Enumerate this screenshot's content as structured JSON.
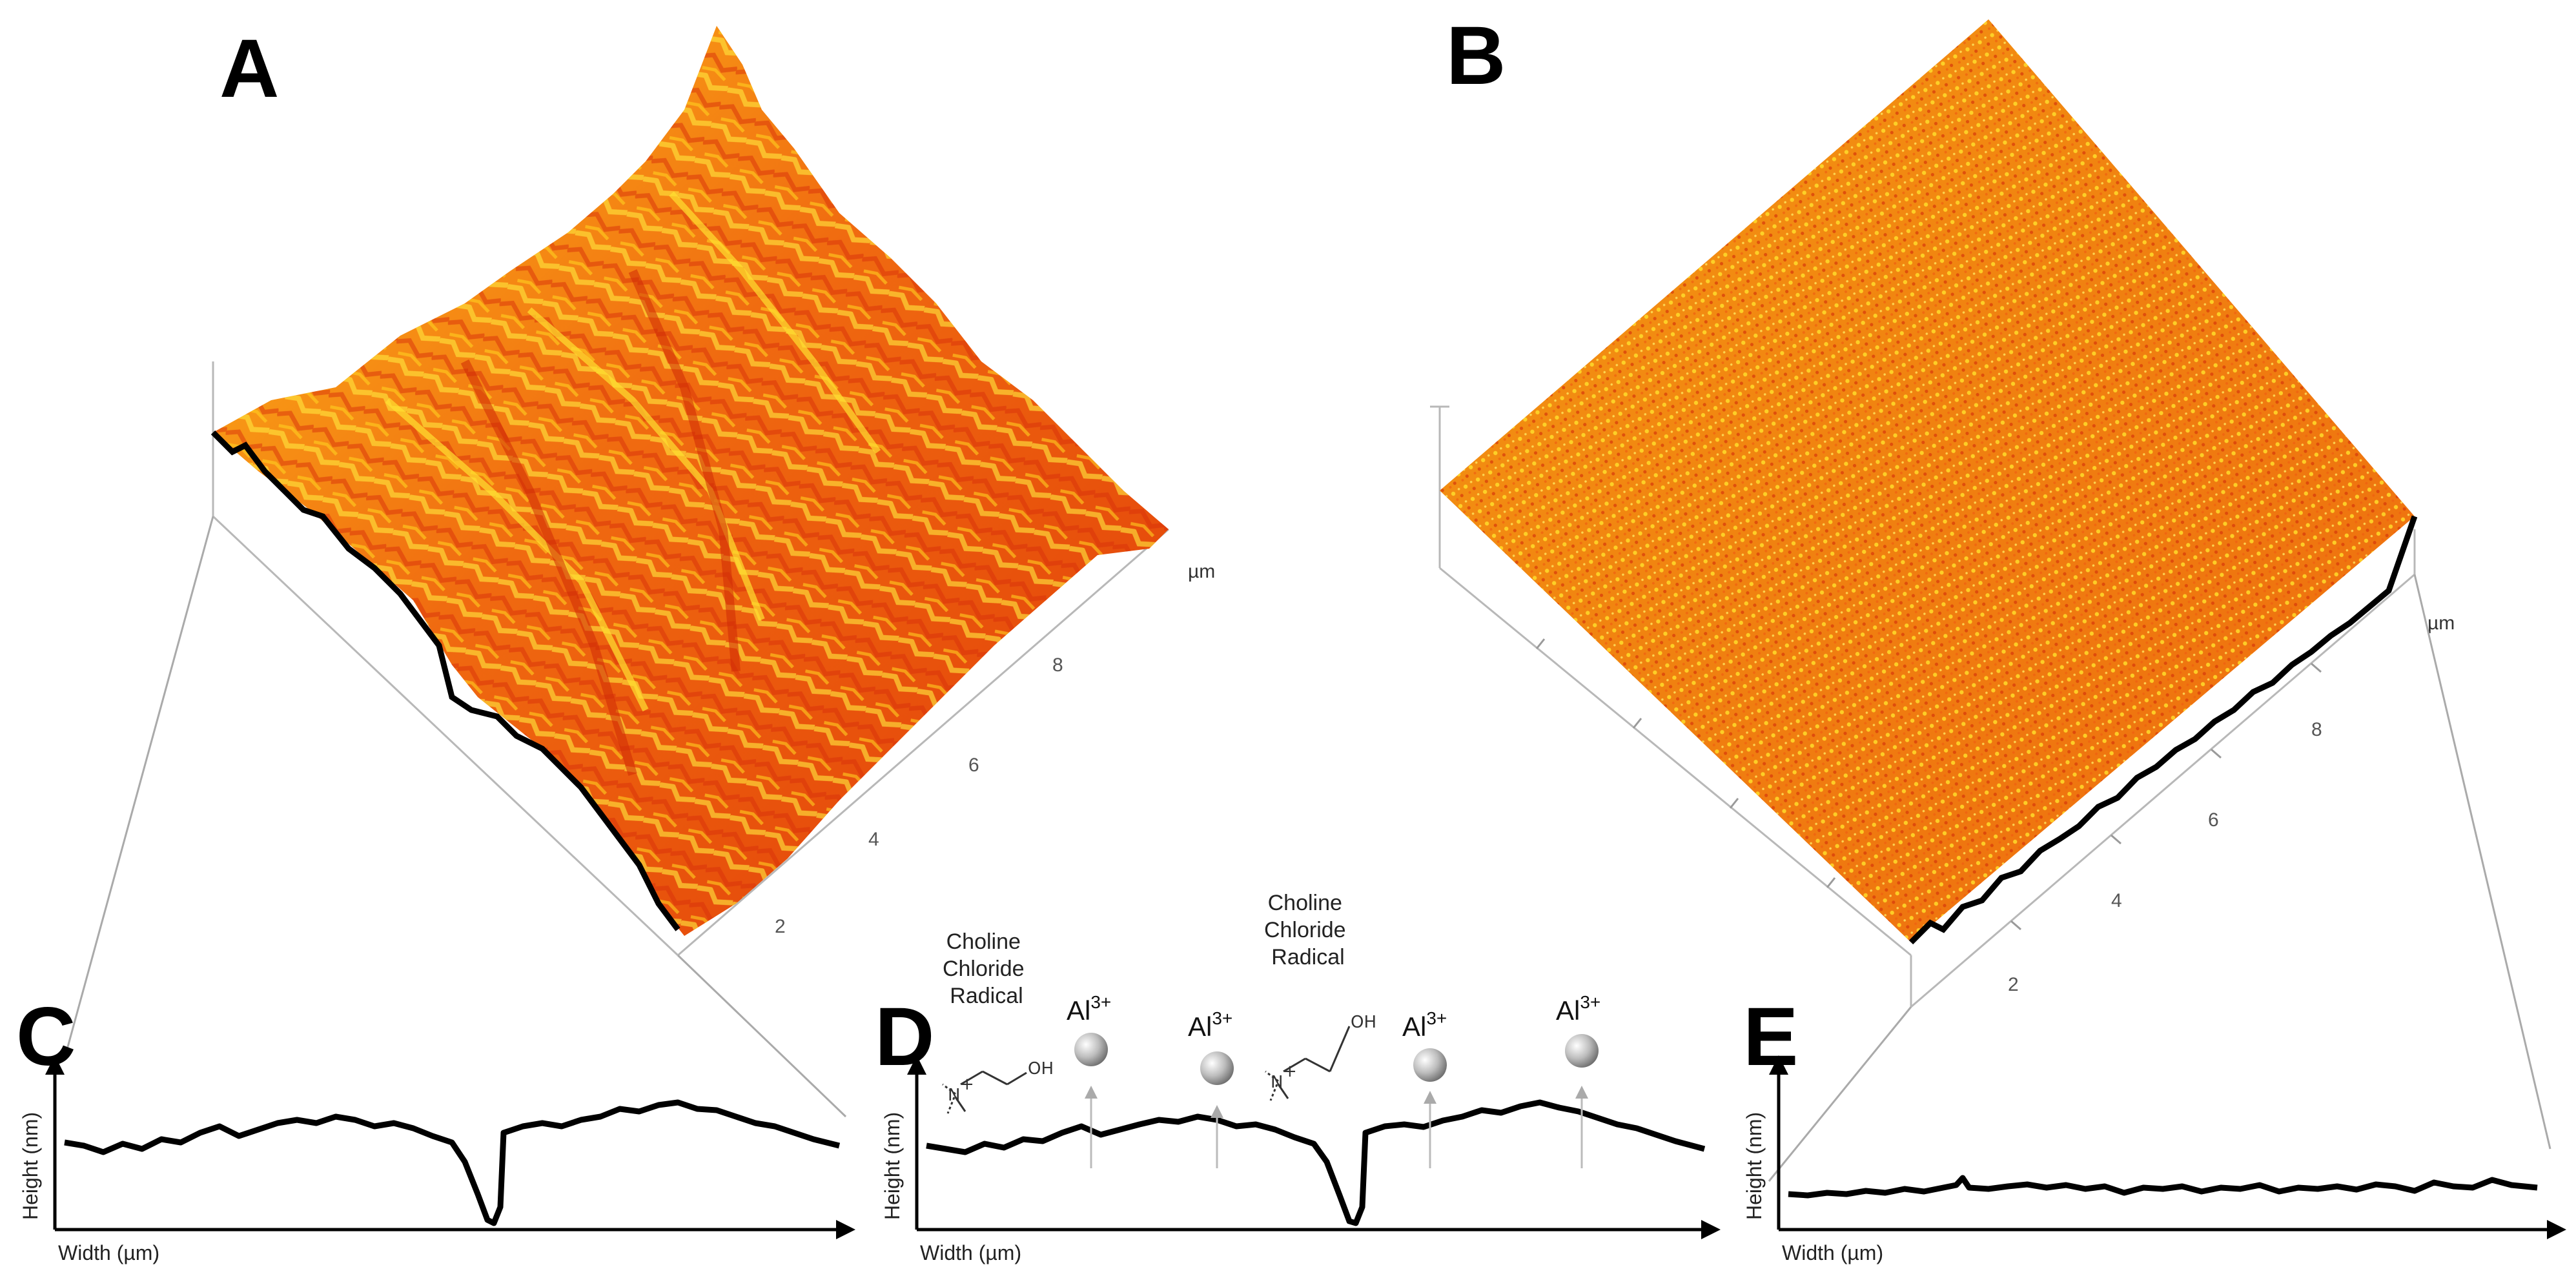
{
  "panels": {
    "A": {
      "letter": "A",
      "unit": "µm",
      "ticks": [
        "2",
        "4",
        "6",
        "8"
      ]
    },
    "B": {
      "letter": "B",
      "unit": "µm",
      "ticks": [
        "2",
        "4",
        "6",
        "8"
      ]
    },
    "C": {
      "letter": "C",
      "ylabel": "Height (nm)",
      "xlabel": "Width (µm)"
    },
    "D": {
      "letter": "D",
      "ylabel": "Height (nm)",
      "xlabel": "Width (µm)",
      "radical_label_1": [
        "Choline",
        "Chloride",
        "Radical"
      ],
      "radical_label_2": [
        "Choline",
        "Chloride",
        "Radical"
      ],
      "ion": "Al",
      "ion_charge": "3+",
      "molecule_atoms": {
        "n": "N",
        "plus": "+",
        "oh": "OH"
      }
    },
    "E": {
      "letter": "E",
      "ylabel": "Height (nm)",
      "xlabel": "Width (µm)"
    }
  },
  "colors": {
    "surface_base": "#f08a10",
    "surface_light": "#ffd21a",
    "surface_dark": "#e8400c",
    "profile": "#000000",
    "guide": "#aaaaaa"
  }
}
